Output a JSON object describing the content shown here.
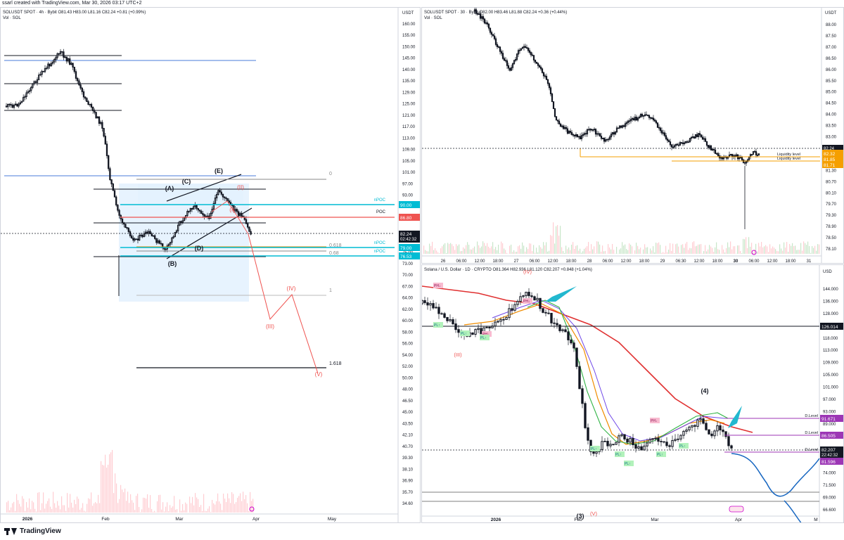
{
  "header": {
    "text": "ssarl created with TradingView.com, Mar 30, 2026 03:17 UTC+2"
  },
  "footer": {
    "brand": "TradingView"
  },
  "colors": {
    "up": "#131722",
    "down": "#131722",
    "ma_red": "#e03131",
    "ma_orange": "#f08c00",
    "ma_purple": "#7048e8",
    "ma_blue": "#4c6ef5",
    "ma_green": "#2fb344",
    "cyan": "#00bcd4",
    "proj_red": "#ef5350",
    "blue_line": "#1565c0",
    "orange_level": "#f59f00"
  },
  "left": {
    "title": "SOLUSDT SPOT · 4h · Bybit  O81.43  H83.00  L81.16  C82.24  +0.81 (+0.99%)",
    "vol": "Vol · SOL",
    "currency": "USDT",
    "yticks": [
      "160.00",
      "155.00",
      "150.00",
      "145.00",
      "140.00",
      "135.00",
      "129.00",
      "125.00",
      "121.00",
      "117.00",
      "113.00",
      "109.00",
      "105.00",
      "101.00",
      "97.00",
      "93.00",
      "89.00",
      "85.00",
      "82.24",
      "78.00",
      "75.00",
      "73.00",
      "70.00",
      "67.00",
      "64.00",
      "62.00",
      "60.00",
      "58.00",
      "56.00",
      "54.00",
      "52.00",
      "50.00",
      "48.00",
      "46.50",
      "45.00",
      "43.50",
      "42.10",
      "40.70",
      "39.30",
      "38.10",
      "36.90",
      "35.70",
      "34.60"
    ],
    "xticks": [
      "2026",
      "Feb",
      "Mar",
      "Apr",
      "May"
    ],
    "price_label": "82.24",
    "countdown": "02:42:32",
    "poc_value": "86.80",
    "npoc_labels": [
      "90.00",
      "79.00",
      "76.53"
    ],
    "level_tags": [
      "nPOC",
      "POC",
      "nPOC",
      "nPOC"
    ],
    "fib": [
      "0",
      "0.618",
      "0.68",
      "1",
      "1.618"
    ],
    "waves": [
      "(A)",
      "(B)",
      "(C)",
      "(D)",
      "(E)",
      "(I)",
      "(II)",
      "(III)",
      "(IV)",
      "(V)"
    ]
  },
  "tr": {
    "title": "SOLUSDT SPOT · 30 · Bybit  O82.00  H83.46  L81.88  C82.24  +0.36 (+0.44%)",
    "vol": "Vol · SOL",
    "currency": "USDT",
    "yticks": [
      "88.00",
      "87.50",
      "87.00",
      "86.50",
      "86.00",
      "85.50",
      "85.00",
      "84.50",
      "84.00",
      "83.50",
      "83.00",
      "82.50",
      "82.00",
      "81.30",
      "80.70",
      "80.10",
      "79.70",
      "79.30",
      "78.90",
      "78.50",
      "78.10"
    ],
    "xticks": [
      "26",
      "06:00",
      "12:00",
      "18:00",
      "27",
      "06:00",
      "12:00",
      "18:00",
      "28",
      "06:00",
      "12:00",
      "18:00",
      "29",
      "06:30",
      "12:00",
      "18:00",
      "30",
      "06:00",
      "12:00",
      "18:00",
      "31"
    ],
    "price_label": "82.24",
    "levels": [
      "82.32",
      "81.85",
      "81.71"
    ],
    "liq": [
      "Liquidity level",
      "Liquidity level"
    ]
  },
  "br": {
    "title": "Solana / U.S. Dollar · 1D · CRYPTO  O81.364  H82.936  L81.120  C82.207  +0.848 (+1.04%)",
    "currency": "USD",
    "yticks": [
      "144.000",
      "136.000",
      "128.000",
      "123.000",
      "118.000",
      "113.000",
      "109.000",
      "105.000",
      "101.000",
      "97.000",
      "93.000",
      "89.000",
      "85.000",
      "81.000",
      "77.000",
      "74.000",
      "71.500",
      "69.000",
      "66.600"
    ],
    "xticks": [
      "2026",
      "Feb",
      "Mar",
      "Apr",
      "M"
    ],
    "black_level": "126.014",
    "d_levels": [
      "91.671",
      "86.505",
      "81.596"
    ],
    "d_label": "D.Level",
    "price_label": "82.207",
    "countdown": "22:42:32",
    "waves": [
      "(IV)",
      "(III)",
      "(4)",
      "(V)",
      "(3)"
    ],
    "pivots_high": [
      "PH↓",
      "PH↓",
      "PH↓",
      "PH↓"
    ],
    "pivots_low": [
      "PL↑",
      "PL↑",
      "PL↑",
      "PL↑",
      "PL↑",
      "PL↑",
      "PL↑",
      "PL↑"
    ]
  }
}
